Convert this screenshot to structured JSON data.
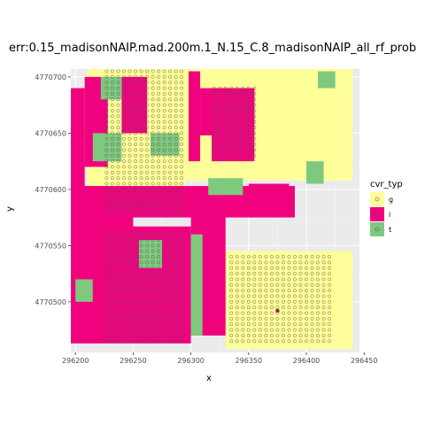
{
  "chart_data": {
    "type": "raster_map_with_points",
    "title": "err:0.15_madisonNAIP.mad.200m.1_N.15_C.8_madisonNAIP_all_rf_prob",
    "xlabel": "x",
    "ylabel": "y",
    "xlim": [
      296196,
      296446
    ],
    "ylim": [
      4770455,
      4770707
    ],
    "x_ticks": [
      296200,
      296250,
      296300,
      296350,
      296400,
      296450
    ],
    "x_tick_labels": [
      "296200",
      "296250",
      "296300",
      "296350",
      "296400",
      "296450"
    ],
    "y_ticks": [
      4770500,
      4770550,
      4770600,
      4770650,
      4770700
    ],
    "y_tick_labels": [
      "4770500",
      "4770550",
      "4770600",
      "4770650",
      "4770700"
    ],
    "grid": true,
    "legend": {
      "title": "cvr_typ",
      "placement": "right",
      "entries": [
        {
          "label": "g",
          "color": "#FFFF99"
        },
        {
          "label": "i",
          "color": "#F0027F"
        },
        {
          "label": "t",
          "color": "#7FC97F"
        }
      ]
    },
    "regions": [
      {
        "cls": "g",
        "x": [
          296210,
          296295
        ],
        "y": [
          4770600,
          4770707
        ]
      },
      {
        "cls": "g",
        "x": [
          296292,
          296440
        ],
        "y": [
          4770608,
          4770707
        ]
      },
      {
        "cls": "g",
        "x": [
          296330,
          296440
        ],
        "y": [
          4770458,
          4770545
        ]
      },
      {
        "cls": "i",
        "x": [
          296196,
          296208
        ],
        "y": [
          4770545,
          4770690
        ]
      },
      {
        "cls": "i",
        "x": [
          296208,
          296228
        ],
        "y": [
          4770620,
          4770700
        ]
      },
      {
        "cls": "i",
        "x": [
          296240,
          296262
        ],
        "y": [
          4770650,
          4770700
        ]
      },
      {
        "cls": "i",
        "x": [
          296298,
          296308
        ],
        "y": [
          4770625,
          4770705
        ]
      },
      {
        "cls": "i",
        "x": [
          296308,
          296355
        ],
        "y": [
          4770648,
          4770690
        ]
      },
      {
        "cls": "i",
        "x": [
          296318,
          296355
        ],
        "y": [
          4770625,
          4770690
        ]
      },
      {
        "cls": "i",
        "x": [
          296350,
          296385
        ],
        "y": [
          4770600,
          4770605
        ]
      },
      {
        "cls": "i",
        "x": [
          296196,
          296390
        ],
        "y": [
          4770575,
          4770603
        ]
      },
      {
        "cls": "i",
        "x": [
          296196,
          296250
        ],
        "y": [
          4770565,
          4770580
        ]
      },
      {
        "cls": "i",
        "x": [
          296196,
          296300
        ],
        "y": [
          4770463,
          4770567
        ]
      },
      {
        "cls": "i",
        "x": [
          296300,
          296330
        ],
        "y": [
          4770470,
          4770580
        ]
      },
      {
        "cls": "t",
        "x": [
          296222,
          296240
        ],
        "y": [
          4770680,
          4770700
        ]
      },
      {
        "cls": "t",
        "x": [
          296215,
          296240
        ],
        "y": [
          4770625,
          4770650
        ]
      },
      {
        "cls": "t",
        "x": [
          296265,
          296290
        ],
        "y": [
          4770630,
          4770650
        ]
      },
      {
        "cls": "t",
        "x": [
          296315,
          296345
        ],
        "y": [
          4770595,
          4770610
        ]
      },
      {
        "cls": "t",
        "x": [
          296300,
          296310
        ],
        "y": [
          4770470,
          4770560
        ]
      },
      {
        "cls": "t",
        "x": [
          296255,
          296275
        ],
        "y": [
          4770530,
          4770555
        ]
      },
      {
        "cls": "t",
        "x": [
          296200,
          296215
        ],
        "y": [
          4770500,
          4770520
        ]
      },
      {
        "cls": "t",
        "x": [
          296400,
          296415
        ],
        "y": [
          4770605,
          4770625
        ]
      },
      {
        "cls": "t",
        "x": [
          296410,
          296425
        ],
        "y": [
          4770690,
          4770705
        ]
      }
    ],
    "points": {
      "color": "#555555",
      "symbol": "open-circle",
      "blocks": [
        {
          "x": [
            296227,
            296292
          ],
          "y": [
            4770465,
            4770560
          ],
          "step": 5
        },
        {
          "x": [
            296227,
            296295
          ],
          "y": [
            4770580,
            4770705
          ],
          "step": 5
        },
        {
          "x": [
            296335,
            296420
          ],
          "y": [
            4770465,
            4770540
          ],
          "step": 5
        },
        {
          "x": [
            296320,
            296355
          ],
          "y": [
            4770630,
            4770690
          ],
          "step": 5
        }
      ],
      "filled_point": {
        "x": 296375,
        "y": 4770492,
        "color": "#CC0066"
      }
    }
  }
}
